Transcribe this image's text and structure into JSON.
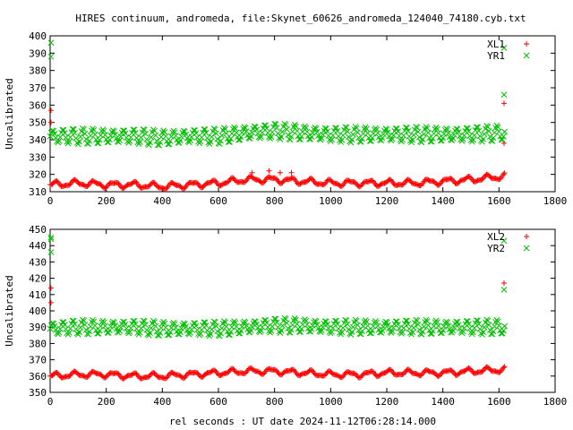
{
  "page": {
    "title": "HIRES continuum, andromeda, file:Skynet_60626_andromeda_124040_74180.cyb.txt",
    "xlabel": "rel seconds : UT date 2024-11-12T06:28:14.000"
  },
  "colors": {
    "red": "#ff0000",
    "green": "#00c000"
  },
  "chart_data": [
    {
      "type": "scatter",
      "ylabel": "Uncalibrated",
      "xlim": [
        0,
        1800
      ],
      "ylim": [
        310,
        400
      ],
      "xticks": [
        0,
        200,
        400,
        600,
        800,
        1000,
        1200,
        1400,
        1600,
        1800
      ],
      "yticks": [
        310,
        320,
        330,
        340,
        350,
        360,
        370,
        380,
        390,
        400
      ],
      "legend_position": "top-right",
      "series": [
        {
          "name": "XL1",
          "marker": "plus",
          "color": "#ff0000",
          "trend_x": [
            0,
            100,
            200,
            300,
            400,
            500,
            600,
            700,
            800,
            900,
            1000,
            1100,
            1200,
            1300,
            1400,
            1500,
            1620
          ],
          "trend_y": [
            314,
            315,
            314,
            314,
            313,
            314,
            315,
            317,
            317,
            316,
            315,
            315,
            315,
            315,
            316,
            317,
            319
          ],
          "amplitude": 1.5,
          "outliers": [
            [
              3,
              357
            ],
            [
              3,
              350
            ],
            [
              1618,
              361
            ],
            [
              1618,
              338
            ],
            [
              720,
              321
            ],
            [
              780,
              322
            ],
            [
              820,
              321
            ],
            [
              860,
              321
            ]
          ]
        },
        {
          "name": "YR1",
          "marker": "cross",
          "color": "#00c000",
          "trend_x": [
            0,
            100,
            200,
            300,
            400,
            500,
            600,
            700,
            800,
            900,
            1000,
            1100,
            1200,
            1300,
            1400,
            1500,
            1620
          ],
          "trend_y": [
            342,
            342,
            342,
            342,
            341,
            342,
            342,
            344,
            345,
            344,
            343,
            343,
            343,
            343,
            343,
            343,
            344
          ],
          "amplitude": 4,
          "outliers": [
            [
              3,
              396
            ],
            [
              3,
              388
            ],
            [
              1618,
              366
            ],
            [
              1618,
              393
            ]
          ]
        }
      ]
    },
    {
      "type": "scatter",
      "ylabel": "Uncalibrated",
      "xlim": [
        0,
        1800
      ],
      "ylim": [
        350,
        450
      ],
      "xticks": [
        0,
        200,
        400,
        600,
        800,
        1000,
        1200,
        1400,
        1600,
        1800
      ],
      "yticks": [
        350,
        360,
        370,
        380,
        390,
        400,
        410,
        420,
        430,
        440,
        450
      ],
      "legend_position": "top-right",
      "series": [
        {
          "name": "XL2",
          "marker": "plus",
          "color": "#ff0000",
          "trend_x": [
            0,
            100,
            200,
            300,
            400,
            500,
            600,
            700,
            800,
            900,
            1000,
            1100,
            1200,
            1300,
            1400,
            1500,
            1620
          ],
          "trend_y": [
            360,
            361,
            361,
            360,
            360,
            361,
            362,
            363,
            363,
            362,
            361,
            361,
            362,
            362,
            362,
            363,
            364
          ],
          "amplitude": 1.5,
          "outliers": [
            [
              3,
              414
            ],
            [
              3,
              405
            ],
            [
              1618,
              417
            ]
          ]
        },
        {
          "name": "YR2",
          "marker": "cross",
          "color": "#00c000",
          "trend_x": [
            0,
            100,
            200,
            300,
            400,
            500,
            600,
            700,
            800,
            900,
            1000,
            1100,
            1200,
            1300,
            1400,
            1500,
            1620
          ],
          "trend_y": [
            389,
            390,
            390,
            390,
            389,
            389,
            389,
            390,
            391,
            391,
            390,
            390,
            390,
            390,
            390,
            390,
            390
          ],
          "amplitude": 4,
          "outliers": [
            [
              3,
              445
            ],
            [
              3,
              444
            ],
            [
              3,
              436
            ],
            [
              1618,
              413
            ],
            [
              1618,
              443
            ]
          ]
        }
      ]
    }
  ]
}
